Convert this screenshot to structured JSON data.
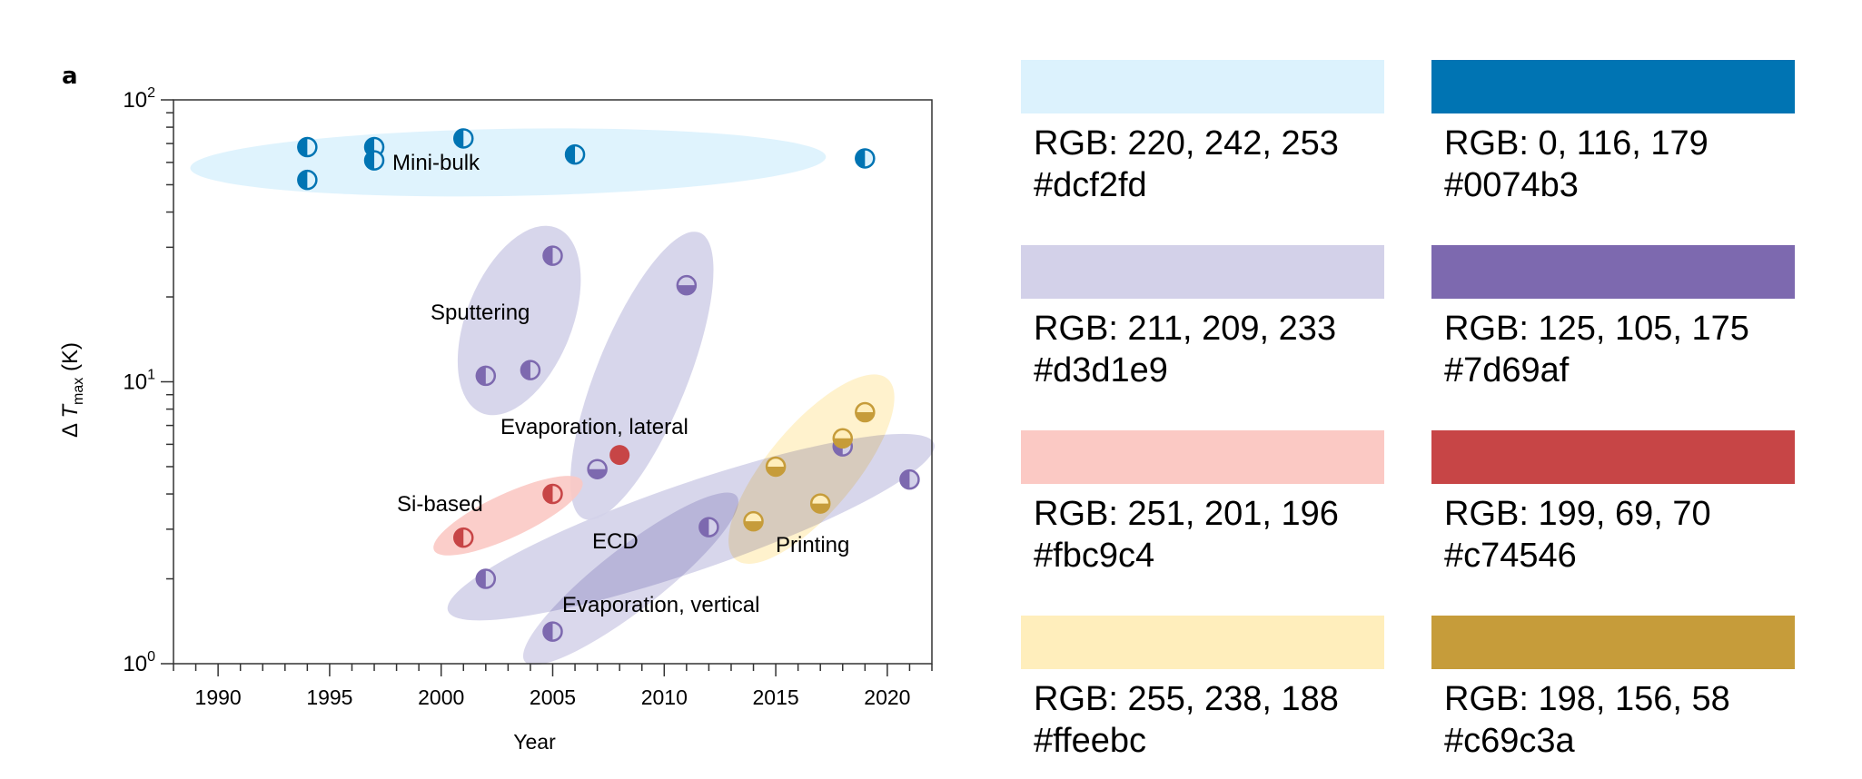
{
  "panel_label": "a",
  "chart_data": {
    "type": "scatter",
    "title": "",
    "xlabel": "Year",
    "ylabel_prefix": "Δ",
    "ylabel_var": "T",
    "ylabel_sub": "max",
    "ylabel_unit": "(K)",
    "xlim": [
      1988,
      2022
    ],
    "ylim": [
      1,
      100
    ],
    "yscale": "log",
    "x_ticks": [
      1990,
      1995,
      2000,
      2005,
      2010,
      2015,
      2020
    ],
    "x_tick_labels": [
      "1990",
      "1995",
      "2000",
      "2005",
      "2010",
      "2015",
      "2020"
    ],
    "y_ticks": [
      {
        "value": 1,
        "base": "10",
        "exp": "0"
      },
      {
        "value": 10,
        "base": "10",
        "exp": "1"
      },
      {
        "value": 100,
        "base": "10",
        "exp": "2"
      }
    ],
    "grid": false,
    "groups": [
      {
        "name": "Mini-bulk",
        "fill": "#dcf2fd",
        "marker_color": "#0074b3",
        "marker_light": "#dcf2fd",
        "points": [
          {
            "x": 1994,
            "y": 68,
            "style": "half-left"
          },
          {
            "x": 1994,
            "y": 52,
            "style": "half-left"
          },
          {
            "x": 1997,
            "y": 68,
            "style": "half-left"
          },
          {
            "x": 1997,
            "y": 61,
            "style": "half-left"
          },
          {
            "x": 2001,
            "y": 73,
            "style": "half-left"
          },
          {
            "x": 2006,
            "y": 64,
            "style": "half-left"
          },
          {
            "x": 2019,
            "y": 62,
            "style": "half-left"
          }
        ]
      },
      {
        "name": "Sputtering",
        "fill": "#d3d1e9",
        "marker_color": "#7d69af",
        "marker_light": "#d3d1e9",
        "points": [
          {
            "x": 2005,
            "y": 28,
            "style": "half-left"
          },
          {
            "x": 2002,
            "y": 10.5,
            "style": "half-left"
          },
          {
            "x": 2004,
            "y": 11,
            "style": "half-left"
          }
        ]
      },
      {
        "name": "Evaporation, lateral",
        "fill": "#d3d1e9",
        "marker_color": "#7d69af",
        "marker_light": "#d3d1e9",
        "points": [
          {
            "x": 2011,
            "y": 22,
            "style": "half-bottom"
          },
          {
            "x": 2007,
            "y": 4.9,
            "style": "half-bottom"
          },
          {
            "x": 2008,
            "y": 5.5,
            "style": "filled",
            "color": "#c74546"
          }
        ]
      },
      {
        "name": "Si-based",
        "fill": "#fbc9c4",
        "marker_color": "#c74546",
        "marker_light": "#fbc9c4",
        "points": [
          {
            "x": 2005,
            "y": 4.0,
            "style": "half-left"
          },
          {
            "x": 2001,
            "y": 2.8,
            "style": "half-left"
          }
        ]
      },
      {
        "name": "ECD",
        "fill": "#d3d1e9",
        "marker_color": "#7d69af",
        "marker_light": "#d3d1e9",
        "points": [
          {
            "x": 2002,
            "y": 2.0,
            "style": "half-left"
          },
          {
            "x": 2018,
            "y": 5.9,
            "style": "half-left"
          },
          {
            "x": 2021,
            "y": 4.5,
            "style": "half-left"
          }
        ]
      },
      {
        "name": "Evaporation, vertical",
        "fill": "#d3d1e9",
        "marker_color": "#7d69af",
        "marker_light": "#d3d1e9",
        "points": [
          {
            "x": 2005,
            "y": 1.3,
            "style": "half-left"
          },
          {
            "x": 2012,
            "y": 3.05,
            "style": "half-left"
          }
        ]
      },
      {
        "name": "Printing",
        "fill": "#ffeebc",
        "marker_color": "#c69c3a",
        "marker_light": "#ffeebc",
        "points": [
          {
            "x": 2015,
            "y": 5.0,
            "style": "half-bottom"
          },
          {
            "x": 2014,
            "y": 3.2,
            "style": "half-bottom"
          },
          {
            "x": 2017,
            "y": 3.7,
            "style": "half-bottom"
          },
          {
            "x": 2018,
            "y": 6.3,
            "style": "half-bottom"
          },
          {
            "x": 2019,
            "y": 7.8,
            "style": "half-bottom"
          }
        ]
      }
    ]
  },
  "palette": [
    {
      "rgb": "RGB: 220, 242, 253",
      "hex": "#dcf2fd",
      "color": "#dcf2fd"
    },
    {
      "rgb": "RGB: 0, 116, 179",
      "hex": "#0074b3",
      "color": "#0074b3"
    },
    {
      "rgb": "RGB: 211, 209, 233",
      "hex": "#d3d1e9",
      "color": "#d3d1e9"
    },
    {
      "rgb": "RGB: 125, 105, 175",
      "hex": "#7d69af",
      "color": "#7d69af"
    },
    {
      "rgb": "RGB: 251, 201, 196",
      "hex": "#fbc9c4",
      "color": "#fbc9c4"
    },
    {
      "rgb": "RGB: 199, 69, 70",
      "hex": "#c74546",
      "color": "#c74546"
    },
    {
      "rgb": "RGB: 255, 238, 188",
      "hex": "#ffeebc",
      "color": "#ffeebc"
    },
    {
      "rgb": "RGB: 198, 156, 58",
      "hex": "#c69c3a",
      "color": "#c69c3a"
    }
  ]
}
